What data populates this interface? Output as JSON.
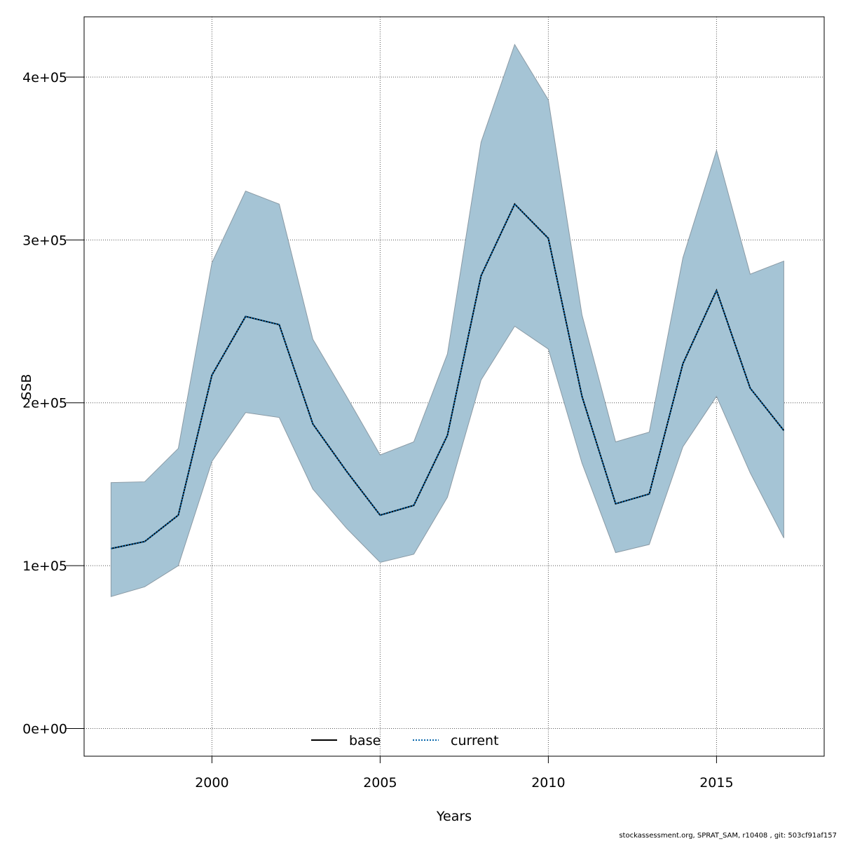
{
  "chart_data": {
    "type": "line",
    "xlabel": "Years",
    "ylabel": "SSB",
    "xlim": [
      1996.2,
      2018.2
    ],
    "ylim": [
      -17000,
      437000
    ],
    "x_ticks": [
      2000,
      2005,
      2010,
      2015
    ],
    "x_tick_labels": [
      "2000",
      "2005",
      "2010",
      "2015"
    ],
    "y_ticks": [
      0,
      100000,
      200000,
      300000,
      400000
    ],
    "y_tick_labels": [
      "0e+00",
      "1e+05",
      "2e+05",
      "3e+05",
      "4e+05"
    ],
    "grid": true,
    "legend_position": "bottom-center",
    "x": [
      1997,
      1998,
      1999,
      2000,
      2001,
      2002,
      2003,
      2004,
      2005,
      2006,
      2007,
      2008,
      2009,
      2010,
      2011,
      2012,
      2013,
      2014,
      2015,
      2016,
      2017
    ],
    "band": {
      "color": "#a5c4d5",
      "upper": [
        151000,
        151500,
        172000,
        286000,
        330000,
        322000,
        239000,
        204000,
        168000,
        176000,
        230000,
        360000,
        420000,
        386000,
        254000,
        176000,
        182000,
        289000,
        355000,
        279000,
        287000
      ],
      "lower": [
        81000,
        87000,
        100000,
        164000,
        194000,
        191000,
        147000,
        123000,
        102000,
        107000,
        142000,
        214000,
        247000,
        233000,
        163000,
        108000,
        113000,
        173000,
        204000,
        157000,
        117000
      ]
    },
    "series": [
      {
        "name": "base",
        "style": "solid",
        "color": "#000000",
        "values": [
          110500,
          114800,
          131000,
          217000,
          253000,
          248000,
          187000,
          158000,
          131000,
          137000,
          180000,
          278000,
          322000,
          301000,
          204000,
          138000,
          144000,
          224000,
          269000,
          209000,
          183000
        ]
      },
      {
        "name": "current",
        "style": "dotted",
        "color": "#0868ac",
        "values": [
          110500,
          114800,
          131000,
          217000,
          253000,
          248000,
          187000,
          158000,
          131000,
          137000,
          180000,
          278000,
          322000,
          301000,
          204000,
          138000,
          144000,
          224000,
          269000,
          209000,
          183000
        ]
      }
    ]
  },
  "footer": "stockassessment.org, SPRAT_SAM, r10408 , git: 503cf91af157"
}
